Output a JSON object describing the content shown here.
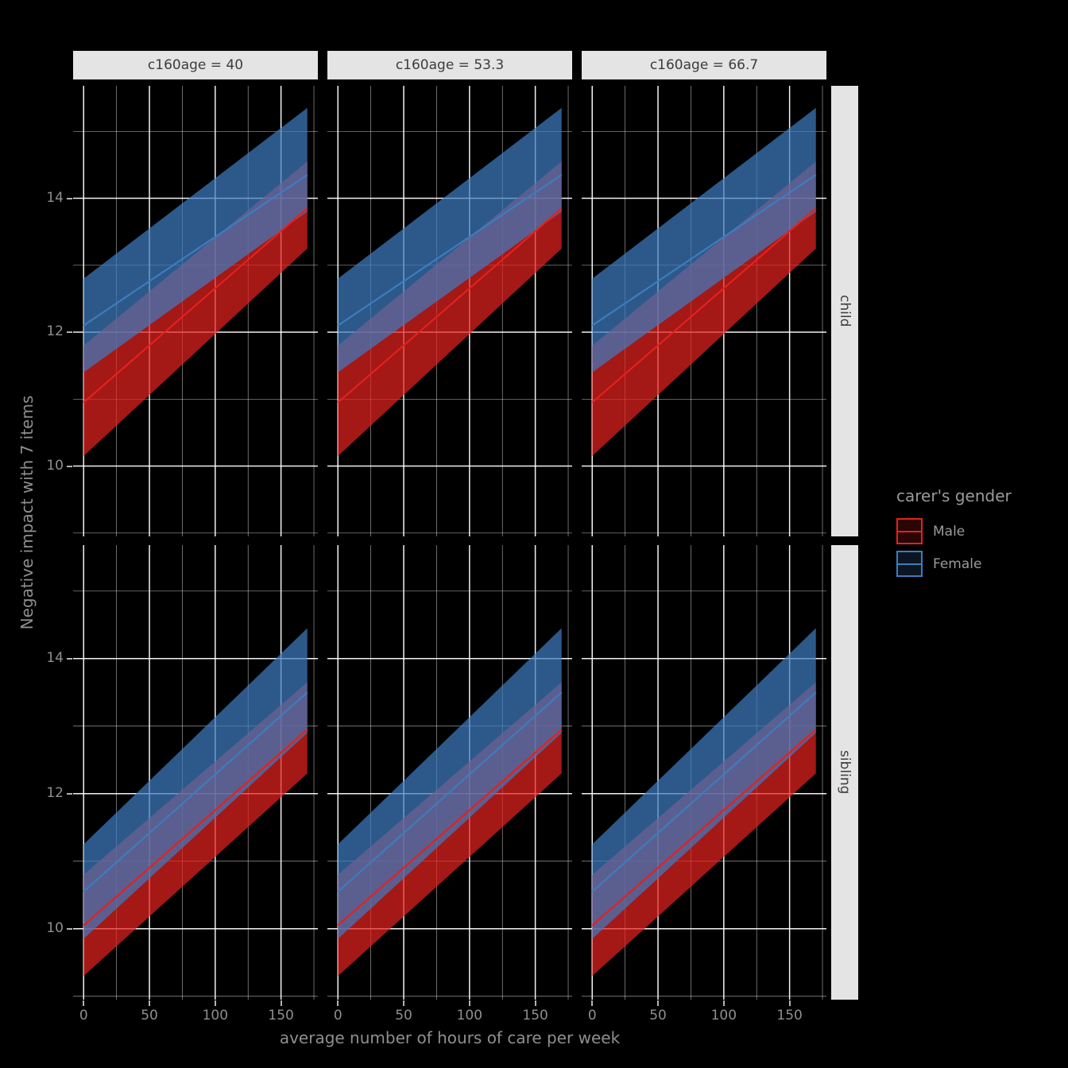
{
  "figure": {
    "background": "#000000",
    "grid_color": "#FFFFFF",
    "strip_background": "#E4E4E4",
    "strip_text_color": "#3C3C3C",
    "axis_text_color": "#8F8F8F"
  },
  "chart_data": {
    "type": "area",
    "xlabel": "average number of hours of care per week",
    "ylabel": "Negative impact with 7 items",
    "facet_cols": [
      {
        "label": "c160age = 40"
      },
      {
        "label": "c160age = 53.3"
      },
      {
        "label": "c160age = 66.7"
      }
    ],
    "facet_rows": [
      {
        "label": "child"
      },
      {
        "label": "sibling"
      }
    ],
    "x_domain": [
      -8,
      178
    ],
    "y_domain": [
      8.95,
      15.68
    ],
    "x_ticks": [
      0,
      50,
      100,
      150
    ],
    "x_minor": [
      25,
      75,
      125,
      175
    ],
    "y_ticks": [
      10,
      12,
      14
    ],
    "y_minor": [
      9,
      11,
      13,
      15
    ],
    "x_span": [
      0,
      170
    ],
    "series": [
      {
        "name": "Male",
        "color": "#E3211E"
      },
      {
        "name": "Female",
        "color": "#3D7CBF"
      }
    ],
    "rows": {
      "child": {
        "male": {
          "center": [
            10.95,
            13.85
          ],
          "lower": [
            10.15,
            13.25
          ],
          "upper": [
            11.8,
            14.55
          ]
        },
        "female": {
          "center": [
            12.1,
            14.35
          ],
          "lower": [
            11.4,
            13.8
          ],
          "upper": [
            12.8,
            15.35
          ]
        }
      },
      "sibling": {
        "male": {
          "center": [
            10.05,
            12.95
          ],
          "lower": [
            9.3,
            12.3
          ],
          "upper": [
            10.8,
            13.65
          ]
        },
        "female": {
          "center": [
            10.55,
            13.5
          ],
          "lower": [
            9.85,
            12.9
          ],
          "upper": [
            11.25,
            14.45
          ]
        }
      }
    }
  },
  "legend": {
    "title": "carer's gender",
    "items": [
      {
        "label": "Male",
        "color": "#E3211E"
      },
      {
        "label": "Female",
        "color": "#3D7CBF"
      }
    ]
  }
}
